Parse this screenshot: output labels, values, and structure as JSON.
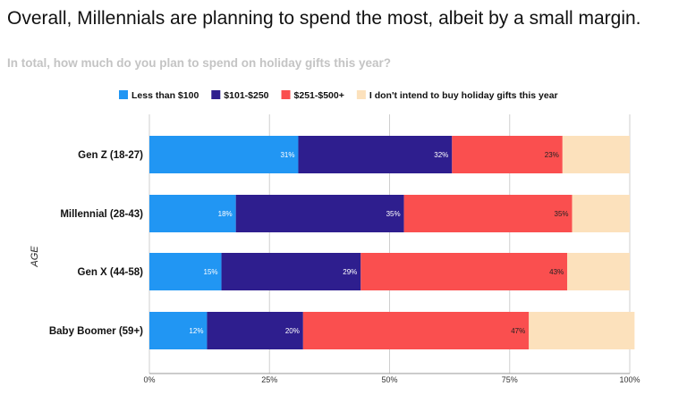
{
  "headline": "Overall, Millennials are planning to spend the most, albeit by a small margin.",
  "subtitle": "In total, how much do you plan to spend on holiday gifts this year?",
  "chart_data": {
    "type": "bar",
    "orientation": "horizontal",
    "stacked": true,
    "ylabel": "AGE",
    "xlabel": "",
    "xlim": [
      0,
      100
    ],
    "x_ticks": [
      "0%",
      "25%",
      "50%",
      "75%",
      "100%"
    ],
    "categories": [
      "Gen Z (18-27)",
      "Millennial (28-43)",
      "Gen X (44-58)",
      "Baby Boomer (59+)"
    ],
    "series": [
      {
        "name": "Less than $100",
        "color": "#2196F3",
        "label_color": "#ffffff",
        "values": [
          31,
          18,
          15,
          12
        ],
        "labels": [
          "31%",
          "18%",
          "15%",
          "12%"
        ]
      },
      {
        "name": "$101-$250",
        "color": "#2E1E8E",
        "label_color": "#ffffff",
        "values": [
          32,
          35,
          29,
          20
        ],
        "labels": [
          "32%",
          "35%",
          "29%",
          "20%"
        ]
      },
      {
        "name": "$251-$500+",
        "color": "#FA4F4F",
        "label_color": "#222222",
        "values": [
          23,
          35,
          43,
          47
        ],
        "labels": [
          "23%",
          "35%",
          "43%",
          "47%"
        ]
      },
      {
        "name": "I don't intend to buy holiday gifts this year",
        "color": "#FCE1BC",
        "label_color": "#222222",
        "values": [
          14,
          12,
          13,
          22
        ],
        "labels": [
          "",
          "",
          "",
          ""
        ]
      }
    ],
    "legend_position": "top",
    "grid": true
  }
}
